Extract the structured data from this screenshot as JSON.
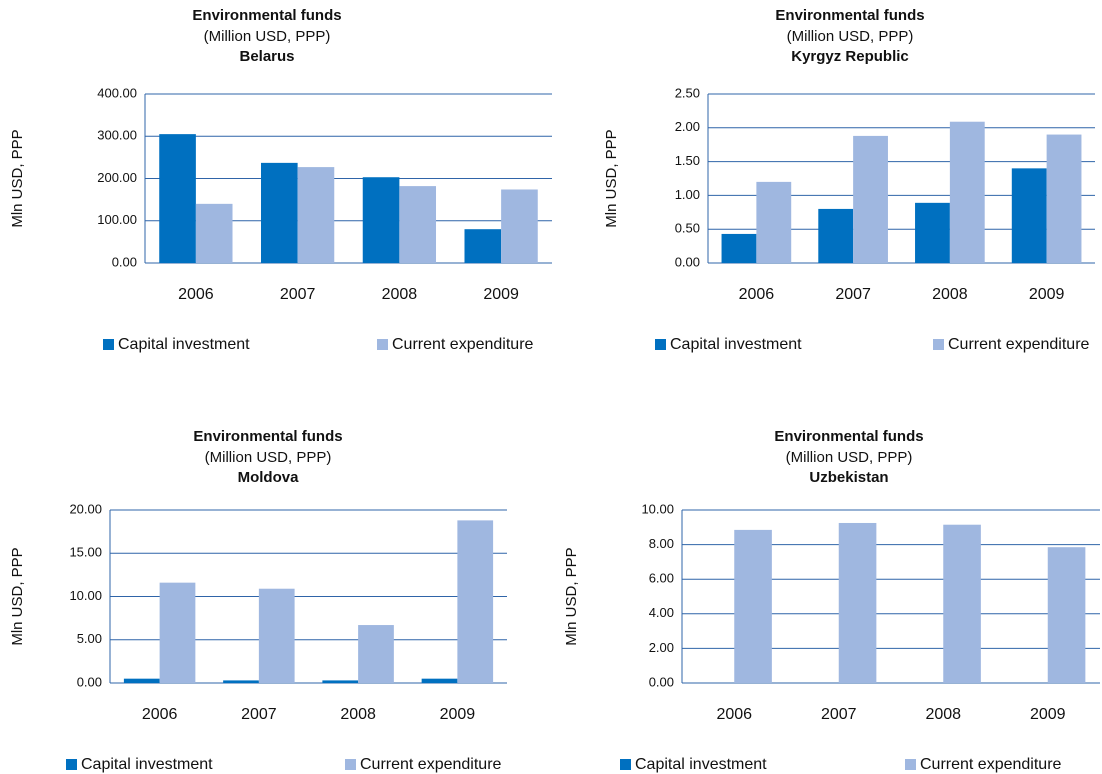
{
  "chart_data": [
    {
      "type": "bar",
      "title": "Environmental funds",
      "subtitle": "(Million USD, PPP)",
      "region": "Belarus",
      "ylabel": "Mln USD, PPP",
      "categories": [
        "2006",
        "2007",
        "2008",
        "2009"
      ],
      "series": [
        {
          "name": "Capital investment",
          "color": "#0070c0",
          "values": [
            305,
            237,
            203,
            80
          ]
        },
        {
          "name": "Current expenditure",
          "color": "#9fb7e0",
          "values": [
            140,
            227,
            182,
            174
          ]
        }
      ],
      "ylim": [
        0,
        400
      ],
      "yticks": [
        {
          "value": 0,
          "label": "0.00"
        },
        {
          "value": 100,
          "label": "100.00"
        },
        {
          "value": 200,
          "label": "200.00"
        },
        {
          "value": 300,
          "label": "300.00"
        },
        {
          "value": 400,
          "label": "400.00"
        }
      ],
      "grid": true,
      "legend": "bottom"
    },
    {
      "type": "bar",
      "title": "Environmental funds",
      "subtitle": "(Million USD, PPP)",
      "region": "Kyrgyz Republic",
      "ylabel": "Mln USD, PPP",
      "categories": [
        "2006",
        "2007",
        "2008",
        "2009"
      ],
      "series": [
        {
          "name": "Capital investment",
          "color": "#0070c0",
          "values": [
            0.43,
            0.8,
            0.89,
            1.4
          ]
        },
        {
          "name": "Current expenditure",
          "color": "#9fb7e0",
          "values": [
            1.2,
            1.88,
            2.09,
            1.9
          ]
        }
      ],
      "ylim": [
        0,
        2.5
      ],
      "yticks": [
        {
          "value": 0,
          "label": "0.00"
        },
        {
          "value": 0.5,
          "label": "0.50"
        },
        {
          "value": 1,
          "label": "1.00"
        },
        {
          "value": 1.5,
          "label": "1.50"
        },
        {
          "value": 2,
          "label": "2.00"
        },
        {
          "value": 2.5,
          "label": "2.50"
        }
      ],
      "grid": true,
      "legend": "bottom"
    },
    {
      "type": "bar",
      "title": "Environmental funds",
      "subtitle": "(Million USD, PPP)",
      "region": "Moldova",
      "ylabel": "Mln USD, PPP",
      "categories": [
        "2006",
        "2007",
        "2008",
        "2009"
      ],
      "series": [
        {
          "name": "Capital investment",
          "color": "#0070c0",
          "values": [
            0.5,
            0.3,
            0.3,
            0.5
          ]
        },
        {
          "name": "Current expenditure",
          "color": "#9fb7e0",
          "values": [
            11.6,
            10.9,
            6.7,
            18.8
          ]
        }
      ],
      "ylim": [
        0,
        20
      ],
      "yticks": [
        {
          "value": 0,
          "label": "0.00"
        },
        {
          "value": 5,
          "label": "5.00"
        },
        {
          "value": 10,
          "label": "10.00"
        },
        {
          "value": 15,
          "label": "15.00"
        },
        {
          "value": 20,
          "label": "20.00"
        }
      ],
      "grid": true,
      "legend": "bottom"
    },
    {
      "type": "bar",
      "title": "Environmental funds",
      "subtitle": "(Million USD, PPP)",
      "region": "Uzbekistan",
      "ylabel": "Mln USD, PPP",
      "categories": [
        "2006",
        "2007",
        "2008",
        "2009"
      ],
      "series": [
        {
          "name": "Capital investment",
          "color": "#0070c0",
          "values": [
            0,
            0,
            0,
            0
          ]
        },
        {
          "name": "Current expenditure",
          "color": "#9fb7e0",
          "values": [
            8.85,
            9.25,
            9.15,
            7.85
          ]
        }
      ],
      "ylim": [
        0,
        10
      ],
      "yticks": [
        {
          "value": 0,
          "label": "0.00"
        },
        {
          "value": 2,
          "label": "2.00"
        },
        {
          "value": 4,
          "label": "4.00"
        },
        {
          "value": 6,
          "label": "6.00"
        },
        {
          "value": 8,
          "label": "8.00"
        },
        {
          "value": 10,
          "label": "10.00"
        }
      ],
      "grid": true,
      "legend": "bottom"
    }
  ]
}
